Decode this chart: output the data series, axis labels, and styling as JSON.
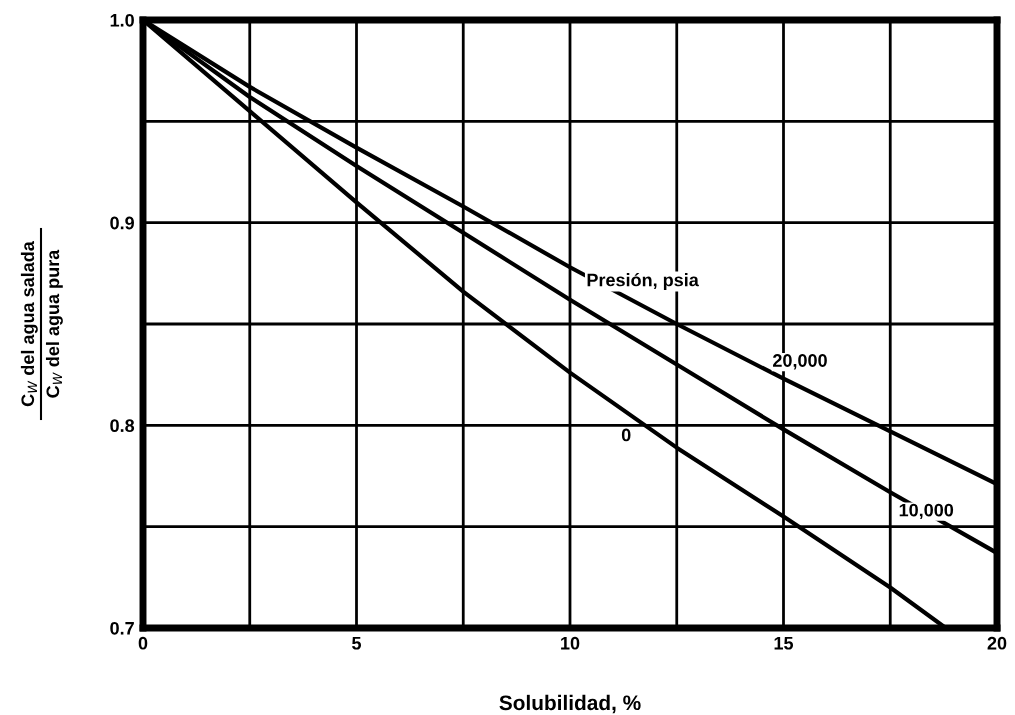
{
  "chart_data": {
    "type": "line",
    "xlabel": "Solubilidad, %",
    "ylabel": "C$_{W}$ del agua salada\nC$_{W}$ del agua pura",
    "legend_title": "Presión, psia",
    "xlim": [
      0,
      20
    ],
    "ylim": [
      0.7,
      1.0
    ],
    "xticks": [
      0,
      {
        "value": 2.5,
        "label": null
      },
      5,
      {
        "value": 7.5,
        "label": null
      },
      10,
      {
        "value": 12.5,
        "label": null
      },
      15,
      {
        "value": 17.5,
        "label": null
      },
      20
    ],
    "yticks": [
      {
        "value": 0.7,
        "label": "0.7"
      },
      {
        "value": 0.75,
        "label": null
      },
      {
        "value": 0.8,
        "label": "0.8"
      },
      {
        "value": 0.85,
        "label": null
      },
      {
        "value": 0.9,
        "label": "0.9"
      },
      {
        "value": 0.95,
        "label": null
      },
      {
        "value": 1.0,
        "label": "1.0"
      }
    ],
    "grid": true,
    "line_style": "solid",
    "marker": "none",
    "series": [
      {
        "name": "0",
        "color": "#000000",
        "x": [
          0,
          2.5,
          5,
          7.5,
          10,
          12.5,
          15,
          17.5,
          18.8
        ],
        "values": [
          1.0,
          0.955,
          0.91,
          0.866,
          0.826,
          0.789,
          0.755,
          0.72,
          0.7
        ]
      },
      {
        "name": "10,000",
        "color": "#000000",
        "x": [
          0,
          2.5,
          5,
          7.5,
          10,
          12.5,
          15,
          17.5,
          20
        ],
        "values": [
          1.0,
          0.962,
          0.928,
          0.895,
          0.862,
          0.83,
          0.798,
          0.767,
          0.737
        ]
      },
      {
        "name": "20,000",
        "color": "#000000",
        "x": [
          0,
          2.5,
          5,
          7.5,
          10,
          12.5,
          15,
          17.5,
          20
        ],
        "values": [
          1.0,
          0.967,
          0.937,
          0.908,
          0.878,
          0.85,
          0.823,
          0.797,
          0.771
        ]
      }
    ]
  }
}
